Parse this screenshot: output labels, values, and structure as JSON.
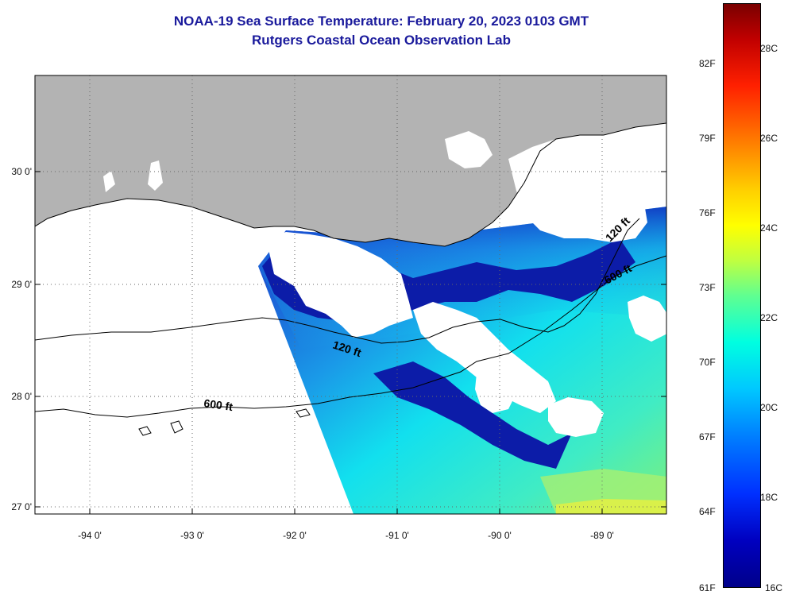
{
  "header": {
    "title": "NOAA-19 Sea Surface Temperature:  February 20, 2023 0103 GMT",
    "subtitle": "Rutgers Coastal Ocean Observation Lab"
  },
  "map": {
    "lon_range": [
      -94.5,
      -88.5
    ],
    "lat_range": [
      26.95,
      30.85
    ],
    "lon_ticks": [
      "-94 0'",
      "-93 0'",
      "-92 0'",
      "-91 0'",
      "-90 0'",
      "-89 0'"
    ],
    "lat_ticks": [
      "30 0'",
      "29 0'",
      "28 0'",
      "27 0'"
    ],
    "grid": true,
    "contours": [
      {
        "label": "120 ft"
      },
      {
        "label": "600 ft"
      },
      {
        "label": "120 ft"
      },
      {
        "label": "600 ft"
      }
    ],
    "colors": {
      "land": "#b3b3b3",
      "cloud": "#ffffff",
      "no_data": "#ffffff"
    }
  },
  "colorbar": {
    "f_labels": [
      "82F",
      "79F",
      "76F",
      "73F",
      "70F",
      "67F",
      "64F",
      "61F"
    ],
    "c_labels": [
      "28C",
      "26C",
      "24C",
      "22C",
      "20C",
      "18C",
      "16C"
    ],
    "range_c": [
      16,
      29
    ]
  }
}
